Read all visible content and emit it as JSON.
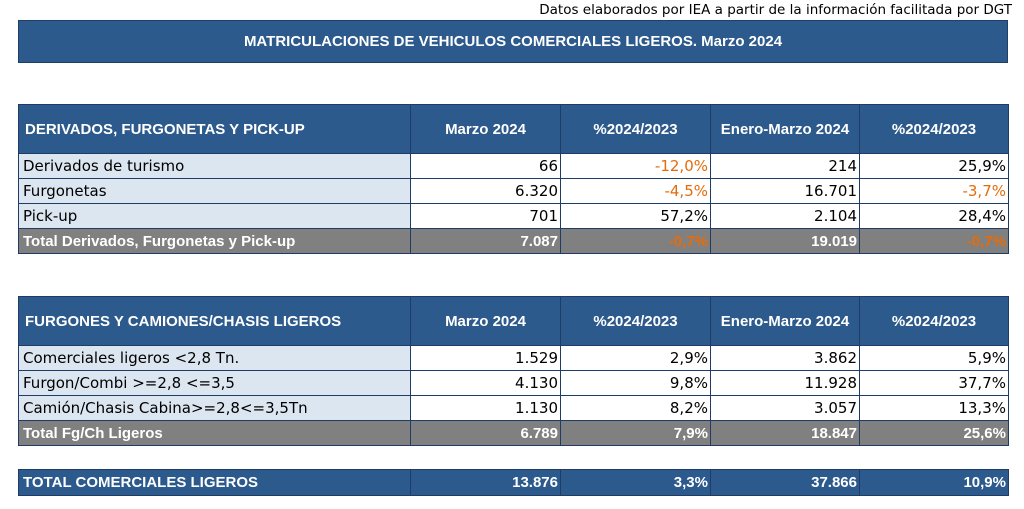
{
  "source_note": "Datos elaborados por IEA a partir de la información facilitada por DGT",
  "title": "MATRICULACIONES DE VEHICULOS COMERCIALES LIGEROS. Marzo 2024",
  "table1": {
    "headers": [
      "DERIVADOS, FURGONETAS Y PICK-UP",
      "Marzo 2024",
      "%2024/2023",
      "Enero-Marzo 2024",
      "%2024/2023"
    ],
    "rows": [
      {
        "label": "Derivados de turismo",
        "v1": "66",
        "p1": "-12,0%",
        "v2": "214",
        "p2": "25,9%"
      },
      {
        "label": "Furgonetas",
        "v1": "6.320",
        "p1": "-4,5%",
        "v2": "16.701",
        "p2": "-3,7%"
      },
      {
        "label": "Pick-up",
        "v1": "701",
        "p1": "57,2%",
        "v2": "2.104",
        "p2": "28,4%"
      }
    ],
    "total": {
      "label": "Total Derivados, Furgonetas y Pick-up",
      "v1": "7.087",
      "p1": "-0,7%",
      "v2": "19.019",
      "p2": "-0,7%"
    }
  },
  "table2": {
    "headers": [
      "FURGONES Y CAMIONES/CHASIS LIGEROS",
      "Marzo 2024",
      "%2024/2023",
      "Enero-Marzo 2024",
      "%2024/2023"
    ],
    "rows": [
      {
        "label": "Comerciales ligeros <2,8 Tn.",
        "v1": "1.529",
        "p1": "2,9%",
        "v2": "3.862",
        "p2": "5,9%"
      },
      {
        "label": "Furgon/Combi >=2,8 <=3,5",
        "v1": "4.130",
        "p1": "9,8%",
        "v2": "11.928",
        "p2": "37,7%"
      },
      {
        "label": "Camión/Chasis Cabina>=2,8<=3,5Tn",
        "v1": "1.130",
        "p1": "8,2%",
        "v2": "3.057",
        "p2": "13,3%"
      }
    ],
    "total": {
      "label": "Total Fg/Ch Ligeros",
      "v1": "6.789",
      "p1": "7,9%",
      "v2": "18.847",
      "p2": "25,6%"
    }
  },
  "grand_total": {
    "label": "TOTAL COMERCIALES LIGEROS",
    "v1": "13.876",
    "p1": "3,3%",
    "v2": "37.866",
    "p2": "10,9%"
  },
  "colors": {
    "header_blue": "#2c5a8c",
    "label_bg": "#dce6f1",
    "total_gray": "#808080",
    "negative_orange": "#e46c0a"
  }
}
